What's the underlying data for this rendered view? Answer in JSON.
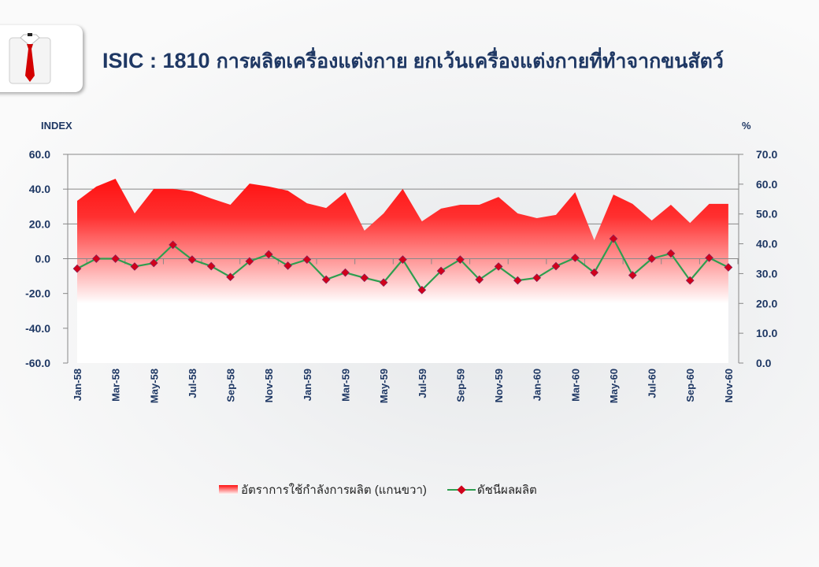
{
  "header": {
    "code": "ISIC : 1810",
    "name": "การผลิตเครื่องแต่งกาย ยกเว้นเครื่องแต่งกายที่ทำจากขนสัตว์",
    "icon": "shirt-tie-icon"
  },
  "chart_data": {
    "type": "line+area",
    "title": "ISIC : 1810 การผลิตเครื่องแต่งกาย ยกเว้นเครื่องแต่งกายที่ทำจากขนสัตว์",
    "ylabel_left": "INDEX",
    "ylabel_right": "%",
    "ylim_left": [
      -60,
      60
    ],
    "ylim_right": [
      0,
      70
    ],
    "yticks_left": [
      "60.0",
      "40.0",
      "20.0",
      "0.0",
      "-20.0",
      "-40.0",
      "-60.0"
    ],
    "yticks_right": [
      "70.0",
      "60.0",
      "50.0",
      "40.0",
      "30.0",
      "20.0",
      "10.0",
      "0.0"
    ],
    "categories": [
      "Jan-58",
      "Feb-58",
      "Mar-58",
      "Apr-58",
      "May-58",
      "Jun-58",
      "Jul-58",
      "Aug-58",
      "Sep-58",
      "Oct-58",
      "Nov-58",
      "Dec-58",
      "Jan-59",
      "Feb-59",
      "Mar-59",
      "Apr-59",
      "May-59",
      "Jun-59",
      "Jul-59",
      "Aug-59",
      "Sep-59",
      "Oct-59",
      "Nov-59",
      "Dec-59",
      "Jan-60",
      "Feb-60",
      "Mar-60",
      "Apr-60",
      "May-60",
      "Jun-60",
      "Jul-60",
      "Aug-60",
      "Sep-60",
      "Oct-60",
      "Nov-60"
    ],
    "xtick_labels": [
      "Jan-58",
      "Mar-58",
      "May-58",
      "Jul-58",
      "Sep-58",
      "Nov-58",
      "Jan-59",
      "Mar-59",
      "May-59",
      "Jul-59",
      "Sep-59",
      "Nov-59",
      "Jan-60",
      "Mar-60",
      "May-60",
      "Jul-60",
      "Sep-60",
      "Nov-60"
    ],
    "series": [
      {
        "name": "อัตราการใช้กำลังการผลิต (แกนขวา)",
        "type": "area",
        "axis": "right",
        "color": "#ff1010",
        "values": [
          54.4,
          59.2,
          61.8,
          50.2,
          58.4,
          58.4,
          57.6,
          55.2,
          53.1,
          60.2,
          59.2,
          57.8,
          53.6,
          52.0,
          57.3,
          44.4,
          50.2,
          58.4,
          47.5,
          51.8,
          53.1,
          53.1,
          55.7,
          50.2,
          48.6,
          49.7,
          57.3,
          41.2,
          56.5,
          53.4,
          47.8,
          53.1,
          47.0,
          53.4,
          53.4
        ]
      },
      {
        "name": "ดัชนีผลผลิต",
        "type": "line",
        "axis": "left",
        "color": "#2e9e4f",
        "marker_color": "#d0021b",
        "values": [
          -5.7,
          0.0,
          0.0,
          -4.5,
          -2.5,
          8.0,
          -0.5,
          -4.3,
          -10.5,
          -1.5,
          2.5,
          -4.0,
          -0.5,
          -12.0,
          -8.0,
          -11.0,
          -13.7,
          -0.5,
          -18.0,
          -7.0,
          -0.5,
          -12.0,
          -4.5,
          -12.5,
          -11.0,
          -4.3,
          0.5,
          -8.0,
          11.5,
          -9.5,
          0.0,
          3.0,
          -12.5,
          0.5,
          -5.0
        ]
      }
    ],
    "grid": true,
    "legend": "bottom"
  }
}
